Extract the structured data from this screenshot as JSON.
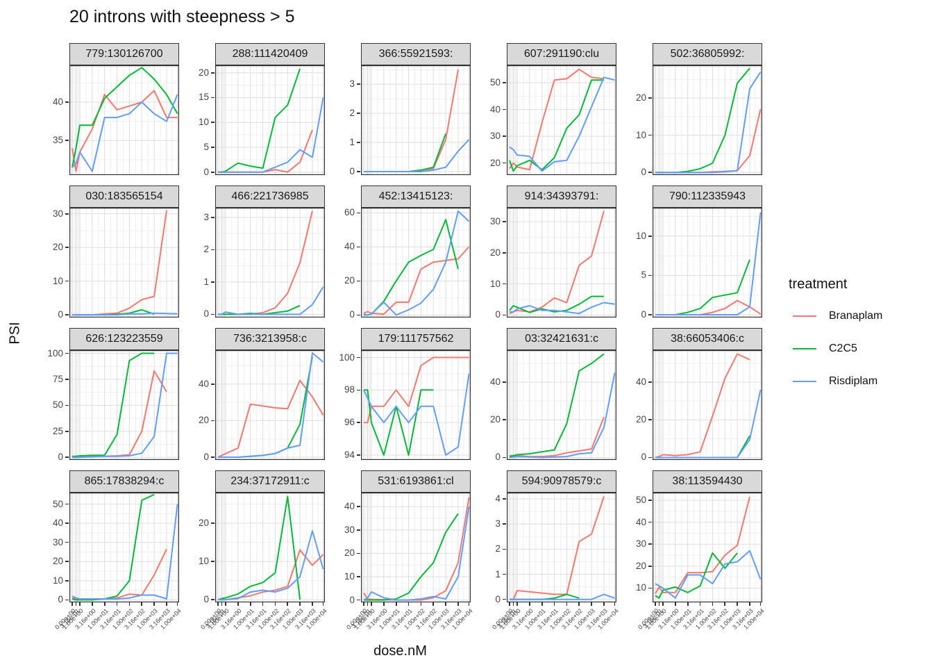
{
  "title": "20 introns with steepness > 5",
  "axes": {
    "x_label": "dose.nM",
    "y_label": "PSI"
  },
  "legend": {
    "title": "treatment",
    "entries": [
      {
        "label": "Branaplam",
        "color": "#F8766D"
      },
      {
        "label": "C2C5",
        "color": "#00BA38"
      },
      {
        "label": "Risdiplam",
        "color": "#619CFF"
      }
    ]
  },
  "style": {
    "strip_bg": "#d9d9d9",
    "panel_border": "#333333",
    "grid_major": "#dedede",
    "grid_minor": "#efefef",
    "axis_text": "#454545"
  },
  "chart_data": {
    "type": "line",
    "title": "20 introns with steepness > 5",
    "xlabel": "dose.nM",
    "ylabel": "PSI",
    "legend_position": "right",
    "x_doses": [
      0,
      0.316,
      1,
      3.16,
      10,
      31.6,
      100,
      316,
      1000,
      3160,
      10000
    ],
    "x_tick_labels": [
      "0.00e+00",
      "3.16e-01",
      "1.00e+00",
      "3.16e+00",
      "1.00e+01",
      "3.16e+01",
      "1.00e+02",
      "3.16e+02",
      "1.00e+03",
      "3.16e+03",
      "1.00e+04"
    ],
    "x_positions": [
      0.025,
      0.06,
      0.095,
      0.208,
      0.321,
      0.434,
      0.547,
      0.66,
      0.773,
      0.886,
      0.985
    ],
    "series_names": [
      "Branaplam",
      "C2C5",
      "Risdiplam"
    ],
    "facets": [
      {
        "label": "779:130126700",
        "ylim": [
          30.5,
          44.8
        ],
        "yticks": [
          35,
          40
        ],
        "series": {
          "Branaplam": [
            34,
            31,
            33.5,
            36.5,
            41,
            39,
            39.5,
            40,
            41.5,
            38,
            38
          ],
          "C2C5": [
            31.5,
            34,
            37,
            37,
            40.5,
            42,
            43.5,
            44.5,
            43,
            41,
            38.5
          ],
          "Risdiplam": [
            31.5,
            32,
            33.5,
            31,
            38,
            38,
            38.5,
            40,
            38.5,
            37.5,
            41
          ]
        }
      },
      {
        "label": "288:111420409",
        "ylim": [
          -0.6,
          21.5
        ],
        "yticks": [
          0,
          5,
          10,
          15,
          20
        ],
        "series": {
          "Branaplam": [
            0,
            0,
            0,
            0,
            0,
            0,
            0.5,
            0,
            2,
            8.5,
            null
          ],
          "C2C5": [
            0,
            0,
            0.2,
            1.8,
            1.2,
            0.8,
            11,
            13.5,
            20.8,
            null,
            null
          ],
          "Risdiplam": [
            0,
            0,
            0,
            0,
            0,
            0,
            1,
            2,
            4.5,
            3,
            15
          ]
        }
      },
      {
        "label": "366:55921593:",
        "ylim": [
          -0.12,
          3.65
        ],
        "yticks": [
          0,
          1,
          2,
          3
        ],
        "series": {
          "Branaplam": [
            0,
            0,
            0,
            0,
            0,
            0,
            0.05,
            0.1,
            1.1,
            3.5,
            null
          ],
          "C2C5": [
            0,
            0,
            0,
            0,
            0,
            0,
            0.05,
            0.15,
            1.3,
            null,
            null
          ],
          "Risdiplam": [
            0,
            0,
            0,
            0,
            0,
            0,
            0,
            0.05,
            0.15,
            0.7,
            1.1
          ]
        }
      },
      {
        "label": "607:291190:clu",
        "ylim": [
          15.5,
          56.5
        ],
        "yticks": [
          20,
          30,
          40,
          50
        ],
        "series": {
          "Branaplam": [
            18,
            20,
            18.5,
            17.5,
            35,
            51,
            51.5,
            55,
            52,
            51.5,
            null
          ],
          "C2C5": [
            21,
            17,
            19,
            21,
            17.5,
            22,
            33,
            38,
            51,
            51,
            null
          ],
          "Risdiplam": [
            26,
            25,
            23,
            22.5,
            17,
            20.5,
            21,
            30,
            41,
            52,
            51
          ]
        }
      },
      {
        "label": "502:36805992:",
        "ylim": [
          -0.7,
          28.8
        ],
        "yticks": [
          0,
          10,
          20
        ],
        "series": {
          "Branaplam": [
            0,
            0,
            0,
            0,
            0,
            0,
            0.2,
            0.3,
            0.5,
            4.5,
            17
          ],
          "C2C5": [
            0,
            0,
            0,
            0,
            0.3,
            1,
            2.5,
            10,
            24,
            28,
            null
          ],
          "Risdiplam": [
            0,
            0,
            0,
            0,
            0,
            0,
            0,
            0.2,
            0.5,
            22.5,
            27
          ]
        }
      },
      {
        "label": "030:183565154",
        "ylim": [
          -0.8,
          31.8
        ],
        "yticks": [
          0,
          10,
          20,
          30
        ],
        "series": {
          "Branaplam": [
            0,
            0,
            0,
            0,
            0.3,
            0.5,
            2,
            4.5,
            5.5,
            31,
            null
          ],
          "C2C5": [
            0,
            0,
            0,
            0,
            0,
            0.2,
            0.5,
            1.5,
            0.2,
            null,
            null
          ],
          "Risdiplam": [
            0,
            0,
            0,
            0,
            0,
            0,
            0.3,
            0.3,
            0.5,
            0.4,
            0.3
          ]
        }
      },
      {
        "label": "466:221736985",
        "ylim": [
          -0.1,
          3.3
        ],
        "yticks": [
          0,
          1,
          2,
          3
        ],
        "series": {
          "Branaplam": [
            0,
            0,
            0,
            0,
            0,
            0.05,
            0.2,
            0.65,
            1.6,
            3.2,
            null
          ],
          "C2C5": [
            0,
            0,
            0,
            0,
            0.03,
            0,
            0.05,
            0.1,
            0.27,
            null,
            null
          ],
          "Risdiplam": [
            0,
            0,
            0.07,
            0,
            0,
            0,
            0,
            0,
            0,
            0.3,
            0.85
          ]
        }
      },
      {
        "label": "452:13415123:",
        "ylim": [
          -1.5,
          63
        ],
        "yticks": [
          0,
          20,
          40,
          60
        ],
        "series": {
          "Branaplam": [
            1,
            2,
            1,
            0.5,
            7.5,
            7.5,
            27,
            31,
            32,
            33,
            40
          ],
          "C2C5": [
            0,
            0,
            0.5,
            8,
            20,
            31,
            35,
            38.5,
            56,
            27,
            null
          ],
          "Risdiplam": [
            0.5,
            0,
            0.5,
            7.5,
            0,
            3,
            7,
            15,
            31,
            61,
            55
          ]
        }
      },
      {
        "label": "914:34393791:",
        "ylim": [
          -0.8,
          34.5
        ],
        "yticks": [
          0,
          10,
          20,
          30
        ],
        "series": {
          "Branaplam": [
            0.5,
            1,
            1.5,
            1,
            2.5,
            5.5,
            4,
            16,
            19,
            33.5,
            null
          ],
          "C2C5": [
            1.5,
            3,
            2.5,
            0.8,
            2,
            1,
            1.5,
            3.5,
            6,
            6,
            null
          ],
          "Risdiplam": [
            1,
            1,
            2,
            3,
            1.5,
            1.5,
            1,
            0.5,
            2.5,
            4,
            3.5
          ]
        }
      },
      {
        "label": "790:112335943",
        "ylim": [
          -0.35,
          13.6
        ],
        "yticks": [
          0,
          5,
          10
        ],
        "series": {
          "Branaplam": [
            0,
            0,
            0,
            0,
            0,
            0,
            0.3,
            0.8,
            1.8,
            1,
            0.1
          ],
          "C2C5": [
            0,
            0,
            0,
            0,
            0.3,
            0.8,
            2.2,
            2.5,
            2.8,
            7,
            null
          ],
          "Risdiplam": [
            0,
            0,
            0,
            0,
            0,
            0,
            0,
            0,
            0,
            1,
            13
          ]
        }
      },
      {
        "label": "626:123223559",
        "ylim": [
          -2.5,
          103
        ],
        "yticks": [
          0,
          25,
          50,
          75,
          100
        ],
        "series": {
          "Branaplam": [
            0,
            0,
            0.5,
            1,
            1,
            1.5,
            2.5,
            25,
            83,
            63,
            null
          ],
          "C2C5": [
            1,
            1,
            1.5,
            2,
            2,
            22,
            93,
            100,
            100,
            null,
            null
          ],
          "Risdiplam": [
            0,
            0,
            0,
            0.5,
            1,
            1,
            1.5,
            4,
            20,
            100,
            100
          ]
        }
      },
      {
        "label": "736:3213958:c",
        "ylim": [
          -1.5,
          58.5
        ],
        "yticks": [
          0,
          20,
          40
        ],
        "series": {
          "Branaplam": [
            0,
            1,
            2,
            5,
            29,
            28,
            27,
            26.5,
            42,
            33,
            23
          ],
          "C2C5": [
            0,
            0,
            0,
            0,
            0.5,
            1,
            2,
            5,
            18,
            55,
            null
          ],
          "Risdiplam": [
            0,
            0,
            0,
            0,
            0.5,
            1,
            2,
            5,
            6.5,
            57,
            52
          ]
        }
      },
      {
        "label": "179:111757562",
        "ylim": [
          93.7,
          100.45
        ],
        "yticks": [
          94,
          96,
          98,
          100
        ],
        "series": {
          "Branaplam": [
            96,
            96,
            97,
            97,
            98,
            97,
            99.5,
            100,
            100,
            100,
            100
          ],
          "C2C5": [
            98,
            98,
            96,
            94,
            97,
            94,
            98,
            98,
            null,
            null,
            null
          ],
          "Risdiplam": [
            98,
            97.5,
            97,
            96,
            97,
            96,
            97,
            97,
            94,
            94.5,
            99
          ]
        }
      },
      {
        "label": "03:32421631:c",
        "ylim": [
          -1.3,
          57
        ],
        "yticks": [
          0,
          20,
          40
        ],
        "series": {
          "Branaplam": [
            1,
            1,
            1,
            0.5,
            0.5,
            1,
            2.5,
            3.5,
            4.5,
            21.5,
            null
          ],
          "C2C5": [
            0.5,
            1,
            1.5,
            2,
            3,
            4,
            18,
            46,
            50,
            55,
            null
          ],
          "Risdiplam": [
            0,
            0.3,
            0.5,
            0.3,
            0,
            0.3,
            0.5,
            2,
            2.5,
            16,
            45
          ]
        }
      },
      {
        "label": "38:66053406:c",
        "ylim": [
          -1.3,
          57
        ],
        "yticks": [
          0,
          20,
          40
        ],
        "series": {
          "Branaplam": [
            0,
            0.5,
            1.5,
            1,
            1.5,
            3,
            22,
            42,
            55,
            52,
            null
          ],
          "C2C5": [
            0,
            0,
            0,
            0,
            0,
            0,
            0,
            0,
            0,
            11.5,
            null
          ],
          "Risdiplam": [
            0,
            0,
            0,
            0,
            0,
            0,
            0,
            0,
            0,
            9.5,
            36
          ]
        }
      },
      {
        "label": "865:17838294:c",
        "ylim": [
          -1.3,
          56
        ],
        "yticks": [
          0,
          10,
          20,
          30,
          40,
          50
        ],
        "series": {
          "Branaplam": [
            1,
            0.5,
            0.5,
            0.5,
            0.5,
            1,
            3,
            2.5,
            13,
            26.5,
            null
          ],
          "C2C5": [
            0.5,
            0,
            0,
            0,
            0.5,
            2,
            10,
            52,
            55,
            null,
            null
          ],
          "Risdiplam": [
            2,
            1,
            0.5,
            0.5,
            0.5,
            0.5,
            1,
            2.5,
            2.5,
            0.5,
            50
          ]
        }
      },
      {
        "label": "234:37172911:c",
        "ylim": [
          -0.7,
          28
        ],
        "yticks": [
          0,
          10,
          20
        ],
        "series": {
          "Branaplam": [
            0,
            0,
            0,
            0.5,
            1,
            2,
            2.5,
            3.5,
            13,
            9,
            11.8
          ],
          "C2C5": [
            0,
            0.3,
            0.5,
            1.5,
            3.5,
            4.5,
            7,
            27,
            0,
            null,
            null
          ],
          "Risdiplam": [
            0,
            0,
            0,
            0.3,
            2,
            2.5,
            2,
            3,
            6,
            18,
            8
          ]
        }
      },
      {
        "label": "531:6193861:cl",
        "ylim": [
          -1,
          46
        ],
        "yticks": [
          0,
          10,
          20,
          30,
          40
        ],
        "series": {
          "Branaplam": [
            3,
            0.5,
            0.3,
            0.2,
            0,
            0,
            0,
            1,
            4,
            16,
            44
          ],
          "C2C5": [
            0,
            0,
            0,
            0,
            0.5,
            3,
            10,
            16,
            29,
            37,
            null
          ],
          "Risdiplam": [
            0,
            1,
            3.5,
            1,
            0,
            0,
            0.5,
            1.5,
            0.5,
            10,
            40
          ]
        }
      },
      {
        "label": "594:90978579:c",
        "ylim": [
          -0.12,
          4.25
        ],
        "yticks": [
          0,
          1,
          2,
          3,
          4
        ],
        "series": {
          "Branaplam": [
            0,
            0,
            0.35,
            0.3,
            0.25,
            0.2,
            0.2,
            2.3,
            2.6,
            4.1,
            null
          ],
          "C2C5": [
            0,
            0,
            0,
            0,
            0,
            0.05,
            0.2,
            0.05,
            null,
            null,
            null
          ],
          "Risdiplam": [
            0,
            0,
            0,
            0,
            0,
            0,
            0,
            0,
            0,
            0.2,
            0.05
          ]
        }
      },
      {
        "label": "38:113594430",
        "ylim": [
          3.5,
          53.5
        ],
        "yticks": [
          10,
          20,
          30,
          40,
          50
        ],
        "series": {
          "Branaplam": [
            7.5,
            10.5,
            8,
            8,
            17,
            17,
            17.5,
            25,
            29.5,
            51.5,
            null
          ],
          "C2C5": [
            6.5,
            5.5,
            9,
            10.5,
            8,
            11,
            26,
            19,
            26,
            null,
            null
          ],
          "Risdiplam": [
            12,
            11,
            10,
            5.5,
            16,
            16,
            12,
            21,
            22,
            27,
            14
          ]
        }
      }
    ]
  }
}
